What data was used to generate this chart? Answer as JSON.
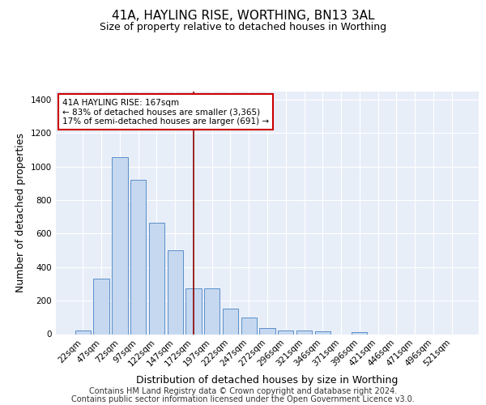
{
  "title": "41A, HAYLING RISE, WORTHING, BN13 3AL",
  "subtitle": "Size of property relative to detached houses in Worthing",
  "xlabel": "Distribution of detached houses by size in Worthing",
  "ylabel": "Number of detached properties",
  "categories": [
    "22sqm",
    "47sqm",
    "72sqm",
    "97sqm",
    "122sqm",
    "147sqm",
    "172sqm",
    "197sqm",
    "222sqm",
    "247sqm",
    "272sqm",
    "296sqm",
    "321sqm",
    "346sqm",
    "371sqm",
    "396sqm",
    "421sqm",
    "446sqm",
    "471sqm",
    "496sqm",
    "521sqm"
  ],
  "values": [
    20,
    330,
    1055,
    920,
    665,
    500,
    275,
    275,
    150,
    100,
    35,
    22,
    22,
    15,
    0,
    12,
    0,
    0,
    0,
    0,
    0
  ],
  "bar_color": "#c5d8f0",
  "bar_edge_color": "#5b8fc9",
  "vline_color": "#8b0000",
  "vline_pos": 6.0,
  "annotation_text": "41A HAYLING RISE: 167sqm\n← 83% of detached houses are smaller (3,365)\n17% of semi-detached houses are larger (691) →",
  "annotation_box_color": "#ffffff",
  "annotation_box_edge": "#cc0000",
  "ylim": [
    0,
    1450
  ],
  "yticks": [
    0,
    200,
    400,
    600,
    800,
    1000,
    1200,
    1400
  ],
  "background_color": "#e8eef8",
  "footer_line1": "Contains HM Land Registry data © Crown copyright and database right 2024.",
  "footer_line2": "Contains public sector information licensed under the Open Government Licence v3.0.",
  "title_fontsize": 11,
  "subtitle_fontsize": 9,
  "tick_fontsize": 7.5,
  "ylabel_fontsize": 9,
  "xlabel_fontsize": 9,
  "footer_fontsize": 7,
  "annotation_fontsize": 7.5
}
